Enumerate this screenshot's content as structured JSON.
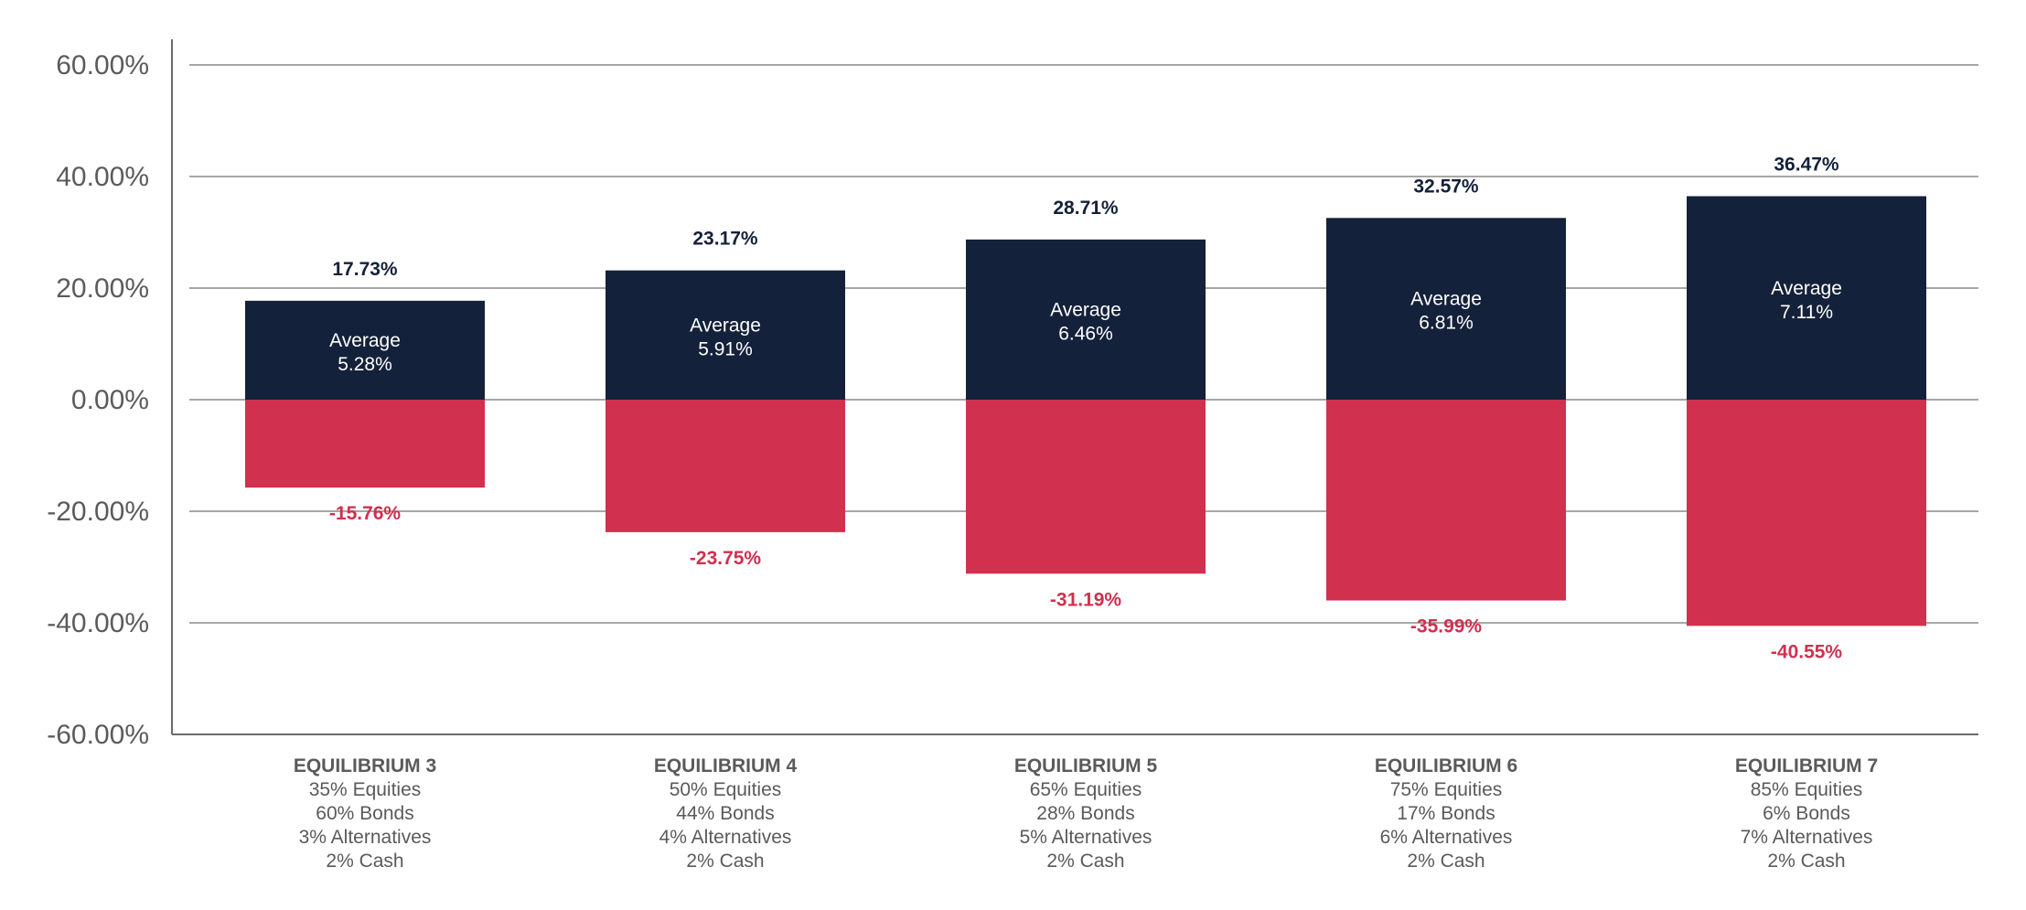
{
  "chart_data": {
    "type": "bar",
    "title": "",
    "xlabel": "",
    "ylabel": "",
    "ylim": [
      -60,
      60
    ],
    "y_ticks": [
      "60.00%",
      "40.00%",
      "20.00%",
      "0.00%",
      "-20.00%",
      "-40.00%",
      "-60.00%"
    ],
    "y_tick_values": [
      60,
      40,
      20,
      0,
      -20,
      -40,
      -60
    ],
    "grid": true,
    "categories": [
      {
        "name": "EQUILIBRIUM 3",
        "lines": [
          "35% Equities",
          "60% Bonds",
          "3% Alternatives",
          "2% Cash"
        ]
      },
      {
        "name": "EQUILIBRIUM 4",
        "lines": [
          "50% Equities",
          "44% Bonds",
          "4% Alternatives",
          "2% Cash"
        ]
      },
      {
        "name": "EQUILIBRIUM 5",
        "lines": [
          "65% Equities",
          "28% Bonds",
          "5% Alternatives",
          "2% Cash"
        ]
      },
      {
        "name": "EQUILIBRIUM 6",
        "lines": [
          "75% Equities",
          "17% Bonds",
          "6% Alternatives",
          "2% Cash"
        ]
      },
      {
        "name": "EQUILIBRIUM 7",
        "lines": [
          "85% Equities",
          "6% Bonds",
          "7% Alternatives",
          "2% Cash"
        ]
      }
    ],
    "series": [
      {
        "values": [
          17.73,
          23.17,
          28.71,
          32.57,
          36.47
        ],
        "labels": [
          "17.73%",
          "23.17%",
          "28.71%",
          "32.57%",
          "36.47%"
        ],
        "color": "#14213a"
      },
      {
        "values": [
          -15.76,
          -23.75,
          -31.19,
          -35.99,
          -40.55
        ],
        "labels": [
          "-15.76%",
          "-23.75%",
          "-31.19%",
          "-35.99%",
          "-40.55%"
        ],
        "color": "#d1304f"
      }
    ],
    "average_label": "Average",
    "averages": [
      "5.28%",
      "5.91%",
      "6.46%",
      "6.81%",
      "7.11%"
    ]
  }
}
